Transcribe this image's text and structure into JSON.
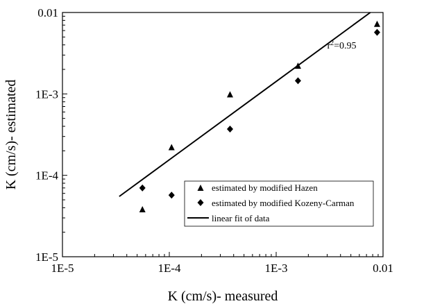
{
  "chart_data": {
    "type": "scatter",
    "xlabel": "K (cm/s)- measured",
    "ylabel": "K (cm/s)- estimated",
    "xscale": "log",
    "yscale": "log",
    "xlim": [
      1e-05,
      0.01
    ],
    "ylim": [
      1e-05,
      0.01
    ],
    "x_ticks": [
      {
        "value": 1e-05,
        "label": "1E-5"
      },
      {
        "value": 0.0001,
        "label": "1E-4"
      },
      {
        "value": 0.001,
        "label": "1E-3"
      },
      {
        "value": 0.01,
        "label": "0.01"
      }
    ],
    "y_ticks": [
      {
        "value": 1e-05,
        "label": "1E-5"
      },
      {
        "value": 0.0001,
        "label": "1E-4"
      },
      {
        "value": 0.001,
        "label": "1E-3"
      },
      {
        "value": 0.01,
        "label": "0.01"
      }
    ],
    "series": [
      {
        "name": "estimated by modified Hazen",
        "marker": "triangle",
        "points": [
          {
            "x": 5.6e-05,
            "y": 3.8e-05
          },
          {
            "x": 0.000105,
            "y": 0.00022
          },
          {
            "x": 0.00037,
            "y": 0.00098
          },
          {
            "x": 0.0016,
            "y": 0.0022
          },
          {
            "x": 0.0088,
            "y": 0.0072
          }
        ]
      },
      {
        "name": "estimated by modified Kozeny-Carman",
        "marker": "diamond",
        "points": [
          {
            "x": 5.6e-05,
            "y": 7e-05
          },
          {
            "x": 0.000105,
            "y": 5.7e-05
          },
          {
            "x": 0.00037,
            "y": 0.00037
          },
          {
            "x": 0.0016,
            "y": 0.00145
          },
          {
            "x": 0.0088,
            "y": 0.0057
          }
        ]
      }
    ],
    "fit_line": {
      "name": "linear fit of data",
      "start": {
        "x": 3.4e-05,
        "y": 5.5e-05
      },
      "end": {
        "x": 0.0076,
        "y": 0.01
      }
    },
    "annotation": {
      "base": "r",
      "sup": "2",
      "rest": "=0.95",
      "x": 0.003,
      "y": 0.0036
    },
    "legend_position": "lower-right",
    "grid": false
  }
}
